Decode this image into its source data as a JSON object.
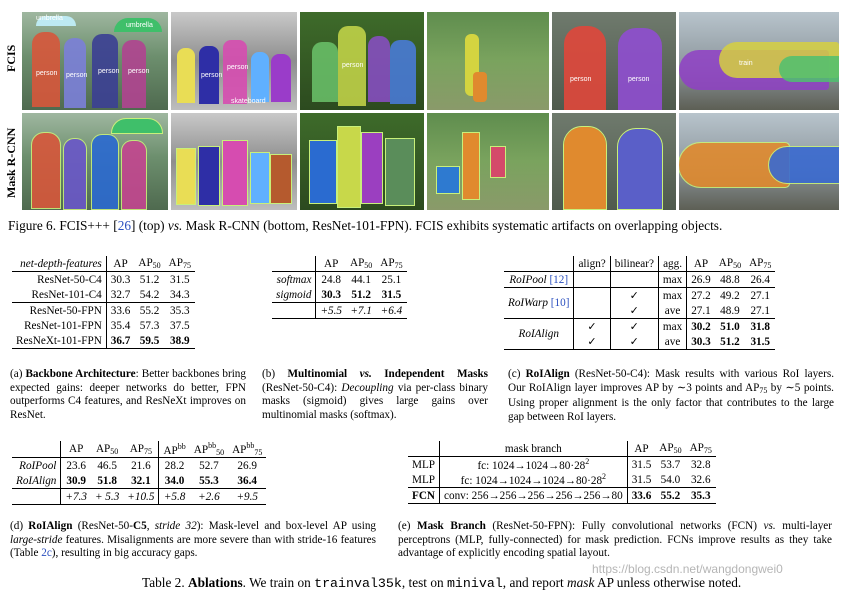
{
  "figure": {
    "row_labels": [
      "FCIS",
      "Mask R-CNN"
    ],
    "labels_fcis": [
      "umbrella",
      "umbrella",
      "person",
      "person",
      "person",
      "person",
      "person",
      "person",
      "skateboard",
      "person",
      "person",
      "person",
      "person",
      "train"
    ],
    "caption_prefix": "Figure 6. FCIS+++ [",
    "caption_ref": "26",
    "caption_mid1": "] (top) ",
    "caption_vs": "vs.",
    "caption_rest": " Mask R-CNN (bottom, ResNet-101-FPN). FCIS exhibits systematic artifacts on overlapping objects."
  },
  "table_a": {
    "header": [
      "net-depth-features",
      "AP",
      "AP",
      "50",
      "AP",
      "75"
    ],
    "rows": [
      [
        "ResNet-50-C4",
        "30.3",
        "51.2",
        "31.5"
      ],
      [
        "ResNet-101-C4",
        "32.7",
        "54.2",
        "34.3"
      ],
      [
        "ResNet-50-FPN",
        "33.6",
        "55.2",
        "35.3"
      ],
      [
        "ResNet-101-FPN",
        "35.4",
        "57.3",
        "37.5"
      ],
      [
        "ResNeXt-101-FPN",
        "36.7",
        "59.5",
        "38.9"
      ]
    ],
    "caption_label": "(a) ",
    "caption_bold": "Backbone Architecture",
    "caption_text": ": Better backbones bring expected gains: deeper networks do better, FPN outperforms C4 features, and ResNeXt improves on ResNet."
  },
  "table_b": {
    "header": [
      "AP",
      "AP",
      "50",
      "AP",
      "75"
    ],
    "rows": [
      [
        "softmax",
        "24.8",
        "44.1",
        "25.1"
      ],
      [
        "sigmoid",
        "30.3",
        "51.2",
        "31.5"
      ],
      [
        "",
        "+5.5",
        "+7.1",
        "+6.4"
      ]
    ],
    "caption_label": "(b) ",
    "caption_bold1": "Multinomial ",
    "caption_bold_vs": "vs.",
    "caption_bold2": " Independent Masks",
    "caption_text1": " (ResNet-50-C4): ",
    "caption_italic": "Decoupling",
    "caption_text2": " via per-class binary masks (sigmoid) gives large gains over multinomial masks (softmax)."
  },
  "table_c": {
    "header": [
      "align?",
      "bilinear?",
      "agg.",
      "AP",
      "AP",
      "50",
      "AP",
      "75"
    ],
    "rows": [
      [
        "RoIPool",
        "[12]",
        "",
        "",
        "max",
        "26.9",
        "48.8",
        "26.4"
      ],
      [
        "RoIWarp",
        "[10]",
        "",
        "✓",
        "max",
        "27.2",
        "49.2",
        "27.1"
      ],
      [
        "",
        "",
        "",
        "✓",
        "ave",
        "27.1",
        "48.9",
        "27.1"
      ],
      [
        "RoIAlign",
        "",
        "✓",
        "✓",
        "max",
        "30.2",
        "51.0",
        "31.8"
      ],
      [
        "",
        "",
        "✓",
        "✓",
        "ave",
        "30.3",
        "51.2",
        "31.5"
      ]
    ],
    "caption_label": "(c) ",
    "caption_bold": "RoIAlign",
    "caption_text": " (ResNet-50-C4): Mask results with various RoI layers. Our RoIAlign layer improves AP by ∼3 points and AP",
    "caption_sub": "75",
    "caption_text2": " by ∼5 points. Using proper alignment is the only factor that contributes to the large gap between RoI layers."
  },
  "table_d": {
    "header": [
      "AP",
      "AP",
      "50",
      "AP",
      "75",
      "AP",
      "bb",
      "AP",
      "bb",
      "50",
      "AP",
      "bb",
      "75"
    ],
    "rows": [
      [
        "RoIPool",
        "23.6",
        "46.5",
        "21.6",
        "28.2",
        "52.7",
        "26.9"
      ],
      [
        "RoIAlign",
        "30.9",
        "51.8",
        "32.1",
        "34.0",
        "55.3",
        "36.4"
      ],
      [
        "",
        "+7.3",
        "+ 5.3",
        "+10.5",
        "+5.8",
        "+2.6",
        "+9.5"
      ]
    ],
    "caption_label": "(d) ",
    "caption_bold": "RoIAlign",
    "caption_text1": " (ResNet-50-",
    "caption_bold2": "C5",
    "caption_text2": ", ",
    "caption_italic1": "stride 32",
    "caption_text3": "): Mask-level and box-level AP using ",
    "caption_italic2": "large-stride",
    "caption_text4": " features. Misalignments are more severe than with stride-16 features (Table ",
    "caption_ref": "2c",
    "caption_text5": "), resulting in big accuracy gaps."
  },
  "table_e": {
    "header": [
      "mask branch",
      "AP",
      "AP",
      "50",
      "AP",
      "75"
    ],
    "rows": [
      [
        "MLP",
        "fc: 1024→1024→80·28",
        "2",
        "31.5",
        "53.7",
        "32.8"
      ],
      [
        "MLP",
        "fc: 1024→1024→1024→80·28",
        "2",
        "31.5",
        "54.0",
        "32.6"
      ],
      [
        "FCN",
        "conv: 256→256→256→256→256→80",
        "",
        "33.6",
        "55.2",
        "35.3"
      ]
    ],
    "caption_label": "(e) ",
    "caption_bold": "Mask Branch",
    "caption_text1": " (ResNet-50-FPN): Fully convolutional networks (FCN) ",
    "caption_italic": "vs.",
    "caption_text2": " multi-layer perceptrons (MLP, fully-connected) for mask prediction. FCNs improve results as they take advantage of explicitly encoding spatial layout."
  },
  "bottom_caption": {
    "prefix": "Table 2. ",
    "bold": "Ablations",
    "t1": ". We train on ",
    "mono1": "trainval35k",
    "t2": ", test on ",
    "mono2": "minival",
    "t3": ", and report ",
    "italic": "mask",
    "t4": " AP unless otherwise noted."
  },
  "watermark": "https://blog.csdn.net/wangdongwei0",
  "colors": {
    "link_blue": "#2a4fbf"
  }
}
